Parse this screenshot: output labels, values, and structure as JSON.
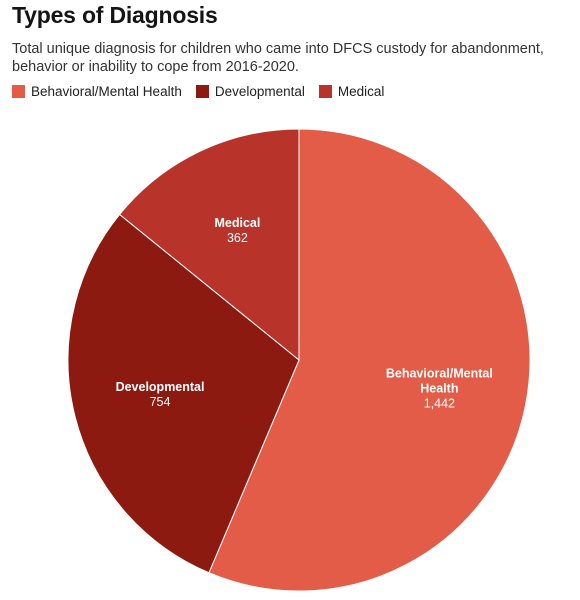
{
  "title": "Types of Diagnosis",
  "subtitle": "Total unique diagnosis for children who came into DFCS custody for abandonment, behavior or inability to cope from 2016-2020.",
  "chart_data": {
    "type": "pie",
    "title": "Types of Diagnosis",
    "subtitle": "Total unique diagnosis for children who came into DFCS custody for abandonment, behavior or inability to cope from 2016-2020.",
    "legend_position": "top-left",
    "slices": [
      {
        "label": "Behavioral/Mental Health",
        "label_lines": [
          "Behavioral/Mental",
          "Health"
        ],
        "value": 1442,
        "value_label": "1,442",
        "color": "#e25c47"
      },
      {
        "label": "Developmental",
        "label_lines": [
          "Developmental"
        ],
        "value": 754,
        "value_label": "754",
        "color": "#8d1a10"
      },
      {
        "label": "Medical",
        "label_lines": [
          "Medical"
        ],
        "value": 362,
        "value_label": "362",
        "color": "#b8342a"
      }
    ]
  }
}
